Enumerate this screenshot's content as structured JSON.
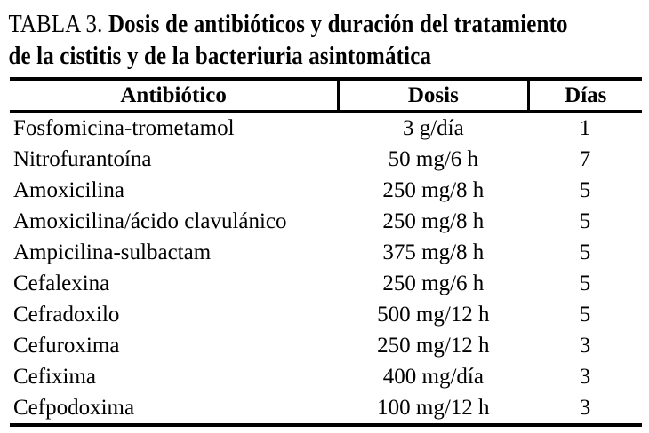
{
  "colors": {
    "background": "#ffffff",
    "text": "#000000",
    "rule": "#000000"
  },
  "title": {
    "prefix": "TABLA 3.",
    "line1": "Dosis de antibióticos y duración del tratamiento",
    "line2": "de la cistitis y de la bacteriuria asintomática"
  },
  "table": {
    "headers": [
      "Antibiótico",
      "Dosis",
      "Días"
    ],
    "rows": [
      {
        "antibiotico": "Fosfomicina-trometamol",
        "dosis": "3 g/día",
        "dias": "1"
      },
      {
        "antibiotico": "Nitrofurantoína",
        "dosis": "50 mg/6 h",
        "dias": "7"
      },
      {
        "antibiotico": "Amoxicilina",
        "dosis": "250 mg/8 h",
        "dias": "5"
      },
      {
        "antibiotico": "Amoxicilina/ácido clavulánico",
        "dosis": "250 mg/8 h",
        "dias": "5"
      },
      {
        "antibiotico": "Ampicilina-sulbactam",
        "dosis": "375 mg/8 h",
        "dias": "5"
      },
      {
        "antibiotico": "Cefalexina",
        "dosis": "250 mg/6 h",
        "dias": "5"
      },
      {
        "antibiotico": "Cefradoxilo",
        "dosis": "500 mg/12 h",
        "dias": "5"
      },
      {
        "antibiotico": "Cefuroxima",
        "dosis": "250 mg/12 h",
        "dias": "3"
      },
      {
        "antibiotico": "Cefixima",
        "dosis": "400 mg/día",
        "dias": "3"
      },
      {
        "antibiotico": "Cefpodoxima",
        "dosis": "100 mg/12 h",
        "dias": "3"
      }
    ]
  }
}
